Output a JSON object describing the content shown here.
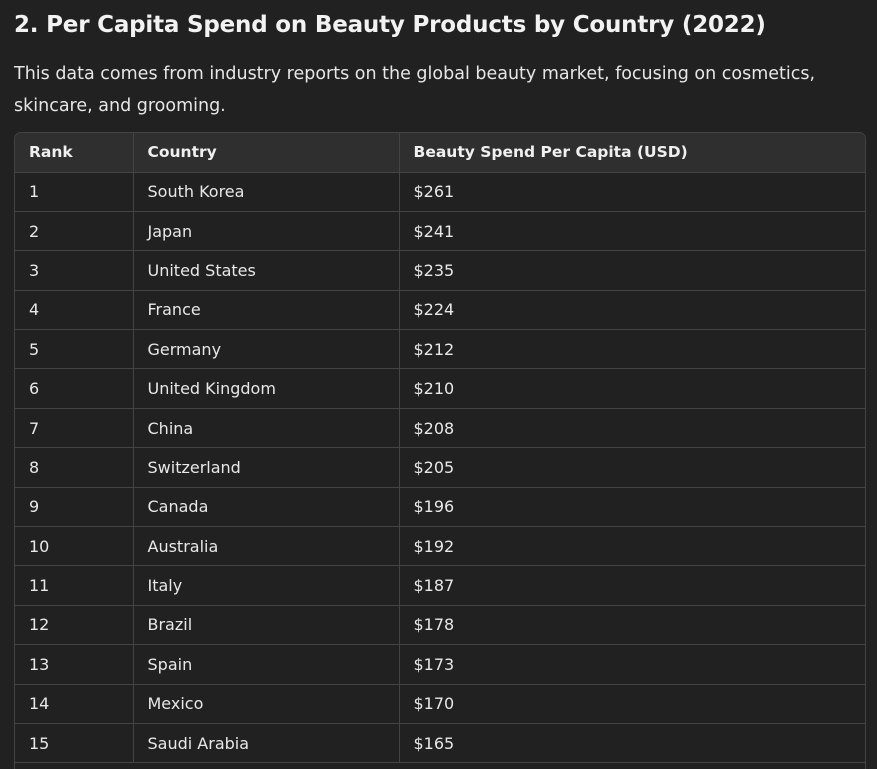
{
  "heading": "2. Per Capita Spend on Beauty Products by Country (2022)",
  "description": "This data comes from industry reports on the global beauty market, focusing on cosmetics, skincare, and grooming.",
  "table": {
    "headers": [
      "Rank",
      "Country",
      "Beauty Spend Per Capita (USD)"
    ],
    "rows": [
      [
        "1",
        "South Korea",
        "$261"
      ],
      [
        "2",
        "Japan",
        "$241"
      ],
      [
        "3",
        "United States",
        "$235"
      ],
      [
        "4",
        "France",
        "$224"
      ],
      [
        "5",
        "Germany",
        "$212"
      ],
      [
        "6",
        "United Kingdom",
        "$210"
      ],
      [
        "7",
        "China",
        "$208"
      ],
      [
        "8",
        "Switzerland",
        "$205"
      ],
      [
        "9",
        "Canada",
        "$196"
      ],
      [
        "10",
        "Australia",
        "$192"
      ],
      [
        "11",
        "Italy",
        "$187"
      ],
      [
        "12",
        "Brazil",
        "$178"
      ],
      [
        "13",
        "Spain",
        "$173"
      ],
      [
        "14",
        "Mexico",
        "$170"
      ],
      [
        "15",
        "Saudi Arabia",
        "$165"
      ]
    ]
  }
}
